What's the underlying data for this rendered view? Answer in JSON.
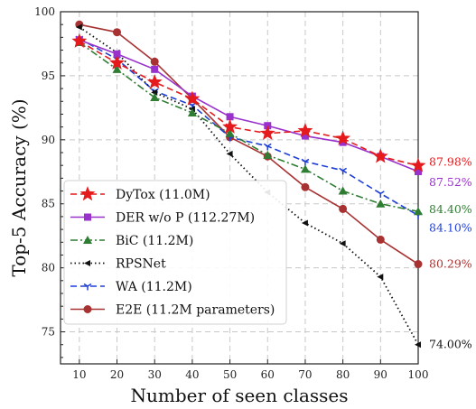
{
  "chart_data": {
    "type": "line",
    "title": "",
    "xlabel": "Number of seen classes",
    "ylabel": "Top-5 Accuracy (%)",
    "x": [
      10,
      20,
      30,
      40,
      50,
      60,
      70,
      80,
      90,
      100
    ],
    "xlim": [
      5,
      100
    ],
    "ylim": [
      72.5,
      100
    ],
    "xticks": [
      "10",
      "20",
      "30",
      "40",
      "50",
      "60",
      "70",
      "80",
      "90",
      "100"
    ],
    "yticks": [
      {
        "value": 75,
        "label": "75"
      },
      {
        "value": 80,
        "label": "80"
      },
      {
        "value": 85,
        "label": "85"
      },
      {
        "value": 90,
        "label": "90"
      },
      {
        "value": 95,
        "label": "95"
      },
      {
        "value": 100,
        "label": "100"
      }
    ],
    "grid": true,
    "legend_position": "lower-left",
    "series": [
      {
        "name": "DyTox (11.0M)",
        "color": "#e41a1c",
        "dash": "dashed",
        "marker": "star",
        "values": [
          97.7,
          96.0,
          94.5,
          93.2,
          91.0,
          90.5,
          90.7,
          90.1,
          88.7,
          87.98
        ],
        "end_label": "87.98%"
      },
      {
        "name": "DER w/o P (112.27M)",
        "color": "#9932cc",
        "dash": "solid",
        "marker": "square",
        "values": [
          97.8,
          96.7,
          95.5,
          93.4,
          91.8,
          91.1,
          90.3,
          89.8,
          88.7,
          87.52
        ],
        "end_label": "87.52%"
      },
      {
        "name": "BiC (11.2M)",
        "color": "#2e7d32",
        "dash": "dashdot",
        "marker": "triangle",
        "values": [
          97.6,
          95.5,
          93.3,
          92.1,
          90.5,
          88.8,
          87.7,
          86.0,
          85.0,
          84.4
        ],
        "end_label": "84.40%"
      },
      {
        "name": "RPSNet",
        "color": "#111111",
        "dash": "dotted",
        "marker": "triangle-left",
        "values": [
          98.8,
          96.8,
          93.7,
          92.4,
          88.9,
          85.9,
          83.5,
          81.9,
          79.3,
          74.0
        ],
        "end_label": "74.00%"
      },
      {
        "name": "WA (11.2M)",
        "color": "#1f3fd6",
        "dash": "dashed",
        "marker": "tri-down",
        "values": [
          97.9,
          96.3,
          93.8,
          92.7,
          90.2,
          89.5,
          88.3,
          87.6,
          85.8,
          84.1
        ],
        "end_label": "84.10%"
      },
      {
        "name": "E2E (11.2M parameters)",
        "color": "#a83232",
        "dash": "solid",
        "marker": "circle",
        "values": [
          99.0,
          98.4,
          96.1,
          93.2,
          90.2,
          88.7,
          86.3,
          84.6,
          82.2,
          80.29
        ],
        "end_label": "80.29%"
      }
    ]
  }
}
